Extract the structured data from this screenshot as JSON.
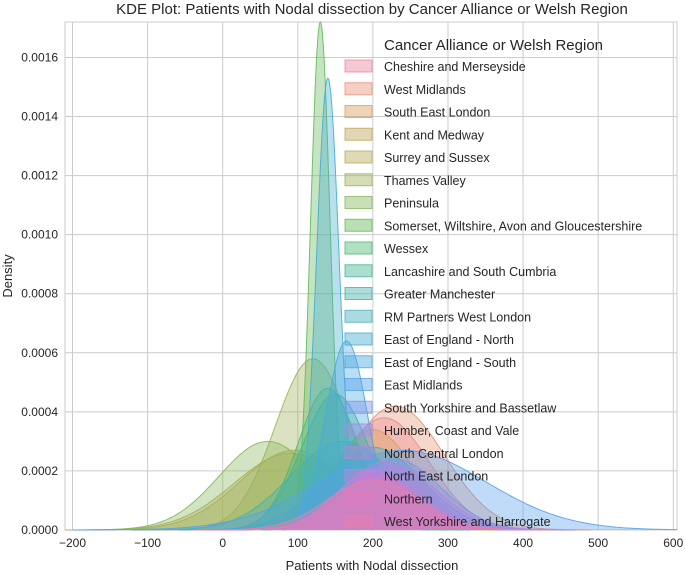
{
  "chart_data": {
    "type": "area",
    "title": "KDE Plot: Patients with Nodal dissection by Cancer Alliance or Welsh Region",
    "xlabel": "Patients with Nodal dissection",
    "ylabel": "Density",
    "xlim": [
      -210,
      605
    ],
    "ylim": [
      0,
      0.00172
    ],
    "xticks": [
      -200,
      -100,
      0,
      100,
      200,
      300,
      400,
      500,
      600
    ],
    "yticks": [
      0.0,
      0.0002,
      0.0004,
      0.0006,
      0.0008,
      0.001,
      0.0012,
      0.0014,
      0.0016
    ],
    "xtick_labels": [
      "−200",
      "−100",
      "0",
      "100",
      "200",
      "300",
      "400",
      "500",
      "600"
    ],
    "ytick_labels": [
      "0.0000",
      "0.0002",
      "0.0004",
      "0.0006",
      "0.0008",
      "0.0010",
      "0.0012",
      "0.0014",
      "0.0016"
    ],
    "grid": true,
    "legend": {
      "title": "Cancer Alliance or Welsh Region",
      "placement": "top-right"
    },
    "series": [
      {
        "name": "Cheshire and Merseyside",
        "color": "#e9879f",
        "mean": 215,
        "sd": 60,
        "peak": 0.00038
      },
      {
        "name": "West Midlands",
        "color": "#e8957a",
        "mean": 230,
        "sd": 65,
        "peak": 0.00042
      },
      {
        "name": "South East London",
        "color": "#d9a060",
        "mean": 200,
        "sd": 55,
        "peak": 0.00034
      },
      {
        "name": "Kent and Medway",
        "color": "#c2a55a",
        "mean": 95,
        "sd": 72,
        "peak": 0.00027
      },
      {
        "name": "Surrey and Sussex",
        "color": "#b5ad5c",
        "mean": 90,
        "sd": 75,
        "peak": 0.00026
      },
      {
        "name": "Thames Valley",
        "color": "#a0b35c",
        "mean": 120,
        "sd": 50,
        "peak": 0.00058
      },
      {
        "name": "Peninsula",
        "color": "#88b85c",
        "mean": 60,
        "sd": 65,
        "peak": 0.0003
      },
      {
        "name": "Somerset, Wiltshire, Avon and Gloucestershire",
        "color": "#66b95c",
        "mean": 130,
        "sd": 13,
        "peak": 0.00172
      },
      {
        "name": "Wessex",
        "color": "#4fb877",
        "mean": 140,
        "sd": 40,
        "peak": 0.00048
      },
      {
        "name": "Lancashire and South Cumbria",
        "color": "#46b597",
        "mean": 150,
        "sd": 45,
        "peak": 0.00046
      },
      {
        "name": "Greater Manchester",
        "color": "#45b3ad",
        "mean": 160,
        "sd": 70,
        "peak": 0.0003
      },
      {
        "name": "RM Partners West London",
        "color": "#45b0bf",
        "mean": 200,
        "sd": 65,
        "peak": 0.00028
      },
      {
        "name": "East of England - North",
        "color": "#46add0",
        "mean": 140,
        "sd": 15,
        "peak": 0.00153
      },
      {
        "name": "East of England - South",
        "color": "#4aa9e0",
        "mean": 165,
        "sd": 28,
        "peak": 0.00064
      },
      {
        "name": "East Midlands",
        "color": "#5aa1ea",
        "mean": 240,
        "sd": 110,
        "peak": 0.00027
      },
      {
        "name": "South Yorkshire and Bassetlaw",
        "color": "#7f97ea",
        "mean": 230,
        "sd": 60,
        "peak": 0.00024
      },
      {
        "name": "Humber, Coast and Vale",
        "color": "#9e8ee6",
        "mean": 215,
        "sd": 55,
        "peak": 0.00023
      },
      {
        "name": "North Central London",
        "color": "#b884e0",
        "mean": 225,
        "sd": 60,
        "peak": 0.00022
      },
      {
        "name": "North East London",
        "color": "#d07cd5",
        "mean": 200,
        "sd": 50,
        "peak": 0.0002
      },
      {
        "name": "Northern",
        "color": "#e078be",
        "mean": 210,
        "sd": 55,
        "peak": 0.00018
      },
      {
        "name": "West Yorkshire and Harrogate",
        "color": "#e97faa",
        "mean": 200,
        "sd": 60,
        "peak": 0.00017
      }
    ]
  }
}
